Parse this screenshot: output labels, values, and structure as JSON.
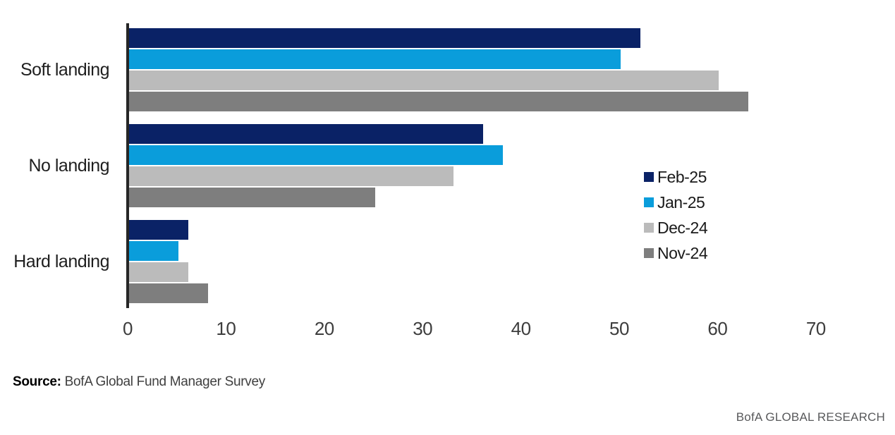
{
  "chart_data": {
    "type": "bar",
    "orientation": "horizontal",
    "title": "",
    "xlabel": "",
    "ylabel": "",
    "categories": [
      "Soft landing",
      "No landing",
      "Hard landing"
    ],
    "series": [
      {
        "name": "Feb-25",
        "color": "#0A2266",
        "values": [
          52,
          36,
          6
        ]
      },
      {
        "name": "Jan-25",
        "color": "#0A9DDB",
        "values": [
          50,
          38,
          5
        ]
      },
      {
        "name": "Dec-24",
        "color": "#BBBBBB",
        "values": [
          60,
          33,
          6
        ]
      },
      {
        "name": "Nov-24",
        "color": "#7E7E7E",
        "values": [
          63,
          25,
          8
        ]
      }
    ],
    "xlim": [
      0,
      70
    ],
    "xticks": [
      0,
      10,
      20,
      30,
      40,
      50,
      60,
      70
    ],
    "grid": false,
    "legend_position": "middle-right",
    "axis_color": "#262626"
  },
  "footer": {
    "source_label": "Source:",
    "source_text": " BofA Global Fund Manager Survey",
    "branding": "BofA GLOBAL RESEARCH"
  }
}
